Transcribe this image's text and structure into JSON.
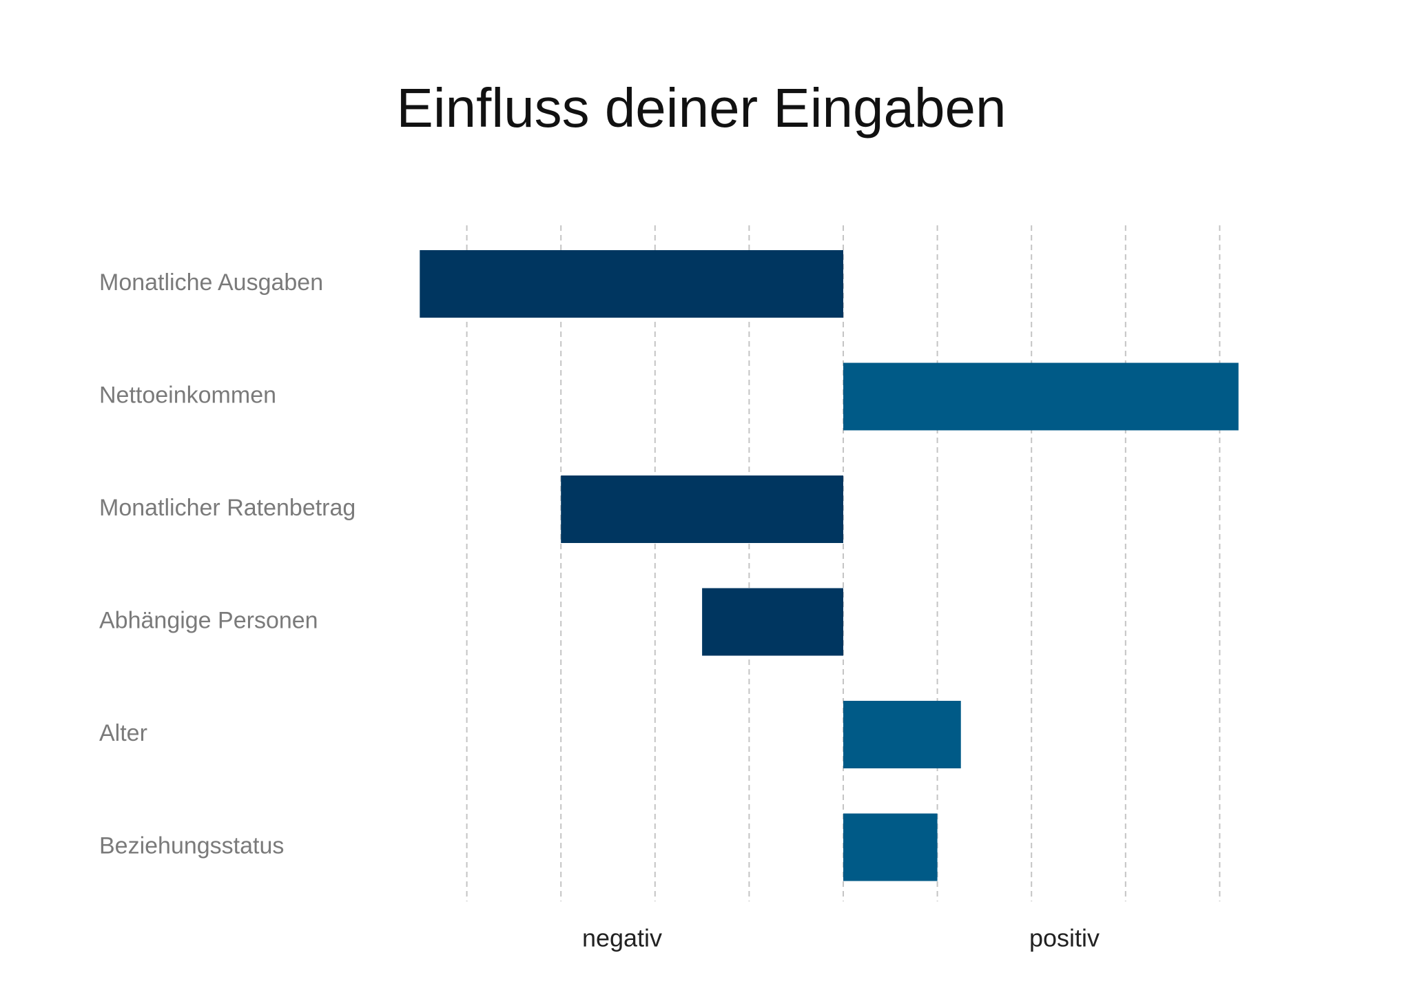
{
  "chart_data": {
    "type": "hbar",
    "title": "Einfluss deiner Eingaben",
    "categories": [
      "Monatliche Ausgaben",
      "Nettoeinkommen",
      "Monatlicher Ratenbetrag",
      "Abhängige Personen",
      "Alter",
      "Beziehungsstatus"
    ],
    "values": [
      -4.5,
      4.2,
      -3,
      -1.5,
      1.25,
      1
    ],
    "color_negative": "#003660",
    "color_positive": "#005a87",
    "xlim": [
      -5,
      5
    ],
    "xticks": [
      -4,
      -3,
      -2,
      -1,
      0,
      1,
      2,
      3,
      4
    ],
    "grid": true,
    "axis_labels": {
      "negative": "negativ",
      "positive": "positiv"
    }
  }
}
